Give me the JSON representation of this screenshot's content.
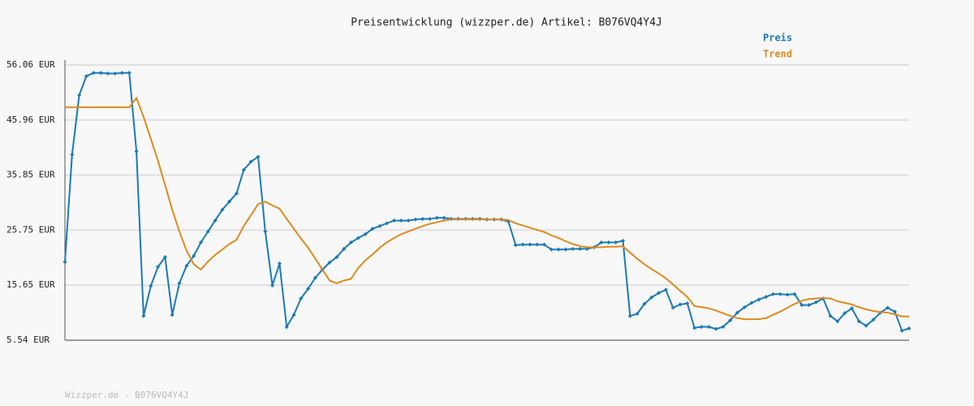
{
  "chart_data": {
    "type": "line",
    "title": "Preisentwicklung (wizzper.de) Artikel: B076VQ4Y4J",
    "footer": "Wizzper.de - B076VQ4Y4J",
    "ylim": [
      5.54,
      56.06
    ],
    "yticks": [
      {
        "value": 5.54,
        "label": "5.54 EUR"
      },
      {
        "value": 15.65,
        "label": "15.65 EUR"
      },
      {
        "value": 25.75,
        "label": "25.75 EUR"
      },
      {
        "value": 35.85,
        "label": "35.85 EUR"
      },
      {
        "value": 45.96,
        "label": "45.96 EUR"
      },
      {
        "value": 56.06,
        "label": "56.06 EUR"
      }
    ],
    "grid": true,
    "legend": "top-right",
    "series": [
      {
        "name": "Preis",
        "color": "#1a7ab8",
        "markers": true,
        "values": [
          19.9,
          39.6,
          50.5,
          54,
          54.6,
          54.6,
          54.5,
          54.5,
          54.6,
          54.6,
          40.2,
          10,
          15.5,
          19,
          20.8,
          10.2,
          16,
          19.2,
          21,
          23.5,
          25.5,
          27.5,
          29.5,
          31,
          32.5,
          36.8,
          38.3,
          39.2,
          25.5,
          15.6,
          19.6,
          8,
          10.2,
          13.2,
          15,
          17,
          18.5,
          19.8,
          20.8,
          22.3,
          23.5,
          24.3,
          25,
          26,
          26.5,
          27,
          27.5,
          27.5,
          27.5,
          27.7,
          27.8,
          27.8,
          28,
          28,
          27.8,
          27.8,
          27.8,
          27.8,
          27.8,
          27.7,
          27.7,
          27.7,
          27.3,
          23,
          23.1,
          23.1,
          23.1,
          23.1,
          22.2,
          22.2,
          22.2,
          22.3,
          22.3,
          22.3,
          22.6,
          23.5,
          23.5,
          23.5,
          23.8,
          10,
          10.4,
          12.2,
          13.4,
          14.2,
          14.8,
          11.5,
          12.1,
          12.3,
          7.8,
          8,
          8,
          7.6,
          8,
          9.2,
          10.6,
          11.6,
          12.4,
          13,
          13.5,
          14,
          14,
          13.9,
          14,
          12,
          12,
          12.5,
          13.2,
          10,
          9,
          10.5,
          11.4,
          9,
          8.2,
          9.3,
          10.6,
          11.5,
          10.8,
          7.3,
          7.7
        ]
      },
      {
        "name": "Trend",
        "color": "#e08a1e",
        "markers": false,
        "values": [
          48.3,
          48.3,
          48.3,
          48.3,
          48.3,
          48.3,
          48.3,
          48.3,
          48.3,
          48.3,
          50,
          46.5,
          42.5,
          38.5,
          34,
          29.5,
          25.5,
          22,
          19.5,
          18.5,
          20,
          21.2,
          22.2,
          23.2,
          24,
          26.5,
          28.5,
          30.5,
          31,
          30.3,
          29.7,
          27.8,
          26,
          24.2,
          22.5,
          20.5,
          18.5,
          16.5,
          16,
          16.5,
          16.8,
          18.8,
          20.2,
          21.3,
          22.5,
          23.5,
          24.3,
          25,
          25.5,
          26,
          26.5,
          26.9,
          27.2,
          27.5,
          27.7,
          27.7,
          27.7,
          27.7,
          27.7,
          27.7,
          27.7,
          27.7,
          27.6,
          27,
          26.6,
          26.2,
          25.8,
          25.4,
          24.8,
          24.3,
          23.7,
          23.2,
          22.8,
          22.6,
          22.6,
          22.6,
          22.7,
          22.7,
          22.8,
          21.6,
          20.5,
          19.5,
          18.6,
          17.8,
          16.9,
          15.8,
          14.6,
          13.5,
          11.8,
          11.6,
          11.4,
          11,
          10.5,
          10,
          9.6,
          9.4,
          9.4,
          9.4,
          9.6,
          10.2,
          10.8,
          11.5,
          12.2,
          12.8,
          13.1,
          13.2,
          13.3,
          13.2,
          12.7,
          12.4,
          12.1,
          11.6,
          11.2,
          10.9,
          10.7,
          10.6,
          10.3,
          9.9,
          9.9
        ]
      }
    ]
  }
}
